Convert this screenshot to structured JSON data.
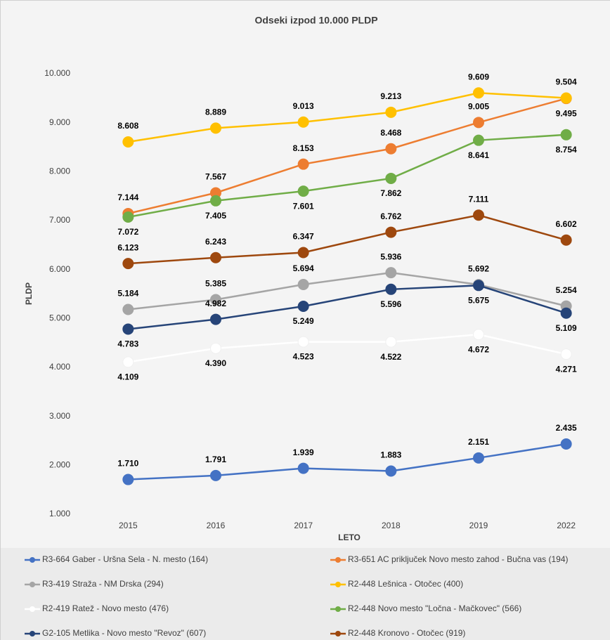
{
  "chart_data": {
    "type": "line",
    "title": "Odseki izpod 10.000 PLDP",
    "x_label": "LETO",
    "y_label": "PLDP",
    "categories": [
      "2015",
      "2016",
      "2017",
      "2018",
      "2019",
      "2022"
    ],
    "ylim": [
      1000,
      10000
    ],
    "yticks": [
      {
        "value": 1000,
        "label": "1.000"
      },
      {
        "value": 2000,
        "label": "2.000"
      },
      {
        "value": 3000,
        "label": "3.000"
      },
      {
        "value": 4000,
        "label": "4.000"
      },
      {
        "value": 5000,
        "label": "5.000"
      },
      {
        "value": 6000,
        "label": "6.000"
      },
      {
        "value": 7000,
        "label": "7.000"
      },
      {
        "value": 8000,
        "label": "8.000"
      },
      {
        "value": 9000,
        "label": "9.000"
      },
      {
        "value": 10000,
        "label": "10.000"
      }
    ],
    "grid": false,
    "legend": "bottom",
    "series": [
      {
        "name": "R3-664 Gaber - Uršna Sela - N. mesto (164)",
        "color": "#4472c4",
        "values": [
          1710,
          1791,
          1939,
          1883,
          2151,
          2435
        ],
        "value_labels": [
          "1.710",
          "1.791",
          "1.939",
          "1.883",
          "2.151",
          "2.435"
        ]
      },
      {
        "name": "R3-651 AC priključek Novo mesto zahod - Bučna vas (194)",
        "color": "#ed7d31",
        "values": [
          7144,
          7567,
          8153,
          8468,
          9005,
          9495
        ],
        "value_labels": [
          "7.144",
          "7.567",
          "8.153",
          "8.468",
          "9.005",
          "9.495"
        ]
      },
      {
        "name": "R3-419 Straža - NM Drska (294)",
        "color": "#a5a5a5",
        "values": [
          5184,
          5385,
          5694,
          5936,
          5692,
          5254
        ],
        "value_labels": [
          "5.184",
          "5.385",
          "5.694",
          "5.936",
          "5.692",
          "5.254"
        ]
      },
      {
        "name": "R2-448 Lešnica - Otočec (400)",
        "color": "#ffc000",
        "values": [
          8608,
          8889,
          9013,
          9213,
          9609,
          9504
        ],
        "value_labels": [
          "8.608",
          "8.889",
          "9.013",
          "9.213",
          "9.609",
          "9.504"
        ]
      },
      {
        "name": "R2-419 Ratež - Novo mesto (476)",
        "color": "#ffffff",
        "values": [
          4109,
          4390,
          4523,
          4522,
          4672,
          4271
        ],
        "value_labels": [
          "4.109",
          "4.390",
          "4.523",
          "4.522",
          "4.672",
          "4.271"
        ]
      },
      {
        "name": "R2-448 Novo mesto \"Ločna - Mačkovec\" (566)",
        "color": "#70ad47",
        "values": [
          7072,
          7405,
          7601,
          7862,
          8641,
          8754
        ],
        "value_labels": [
          "7.072",
          "7.405",
          "7.601",
          "7.862",
          "8.641",
          "8.754"
        ]
      },
      {
        "name": "G2-105 Metlika - Novo mesto \"Revoz\" (607)",
        "color": "#264478",
        "values": [
          4783,
          4982,
          5249,
          5596,
          5675,
          5109
        ],
        "value_labels": [
          "4.783",
          "4.982",
          "5.249",
          "5.596",
          "5.675",
          "5.109"
        ]
      },
      {
        "name": "R2-448 Kronovo - Otočec (919)",
        "color": "#9e480e",
        "values": [
          6123,
          6243,
          6347,
          6762,
          7111,
          6602
        ],
        "value_labels": [
          "6.123",
          "6.243",
          "6.347",
          "6.762",
          "7.111",
          "6.602"
        ]
      }
    ]
  }
}
